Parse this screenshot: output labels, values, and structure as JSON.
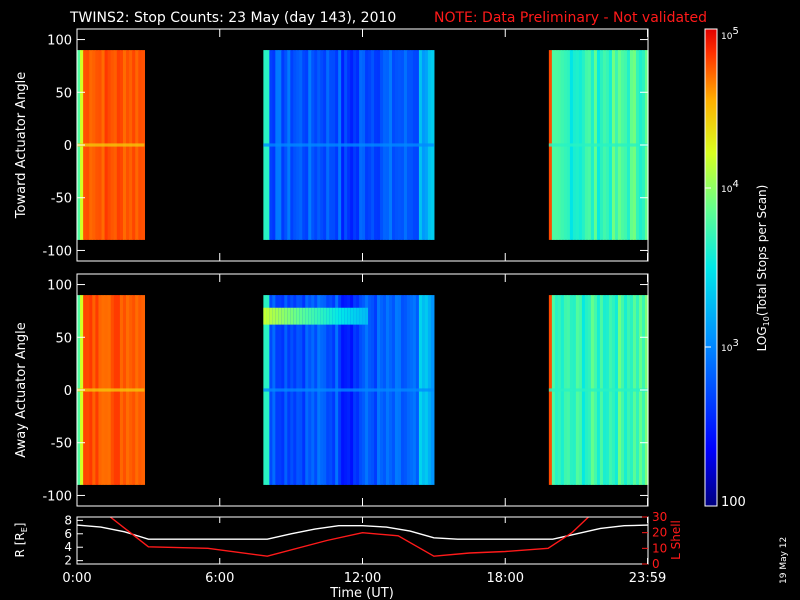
{
  "title": "TWINS2: Stop Counts: 23 May (day 143), 2010",
  "note": "NOTE: Data Preliminary - Not validated",
  "date_stamp": "19 May 12",
  "colors": {
    "note": "#ff1a1a",
    "r_line": "#ffffff",
    "lshell_line": "#ff1a1a",
    "background": "#000000"
  },
  "chart_data": [
    {
      "type": "heatmap",
      "ylabel": "Toward Actuator Angle",
      "ylim": [
        -110,
        110
      ],
      "yticks": [
        "100",
        "50",
        "0",
        "-50",
        "-100"
      ],
      "ytick_values": [
        100,
        50,
        0,
        -50,
        -100
      ],
      "angle_range": [
        -90,
        90
      ],
      "xlim_hours": [
        0,
        24
      ],
      "data_blocks": [
        {
          "start": "0:00",
          "end": "2:50",
          "level": "high"
        },
        {
          "start": "7:50",
          "end": "15:00",
          "level": "low"
        },
        {
          "start": "19:50",
          "end": "24:00",
          "level": "mid"
        }
      ]
    },
    {
      "type": "heatmap",
      "ylabel": "Away Actuator Angle",
      "ylim": [
        -110,
        110
      ],
      "yticks": [
        "100",
        "50",
        "0",
        "-50",
        "-100"
      ],
      "ytick_values": [
        100,
        50,
        0,
        -50,
        -100
      ],
      "angle_range": [
        -90,
        90
      ],
      "xlim_hours": [
        0,
        24
      ],
      "data_blocks": [
        {
          "start": "0:00",
          "end": "2:50",
          "level": "high"
        },
        {
          "start": "7:50",
          "end": "15:00",
          "level": "low"
        },
        {
          "start": "19:50",
          "end": "24:00",
          "level": "mid"
        }
      ]
    },
    {
      "type": "line",
      "ylabel": "R [R",
      "ylabel_sub": "E",
      "ylabel_close": "]",
      "ylim": [
        1.5,
        8.5
      ],
      "yticks": [
        "8",
        "6",
        "4",
        "2"
      ],
      "ytick_values": [
        8,
        6,
        4,
        2
      ],
      "y2label": "L Shell",
      "y2lim": [
        0,
        30
      ],
      "y2ticks": [
        "30",
        "20",
        "10",
        "0"
      ],
      "y2tick_values": [
        30,
        20,
        10,
        0
      ],
      "xlabel": "Time (UT)",
      "xticks": [
        "0:00",
        "6:00",
        "12:00",
        "18:00",
        "23:59"
      ],
      "xtick_hours": [
        0,
        6,
        12,
        18,
        23.98
      ],
      "series": [
        {
          "axis": "left",
          "x": [
            0,
            1,
            2,
            3,
            4,
            5,
            6,
            7,
            8,
            9,
            10,
            11,
            12,
            13,
            14,
            15,
            16,
            17,
            18,
            19,
            20,
            21,
            22,
            23,
            24
          ],
          "y": [
            7.3,
            7.0,
            6.3,
            5.2,
            5.2,
            5.2,
            5.2,
            5.2,
            5.2,
            6.0,
            6.7,
            7.2,
            7.2,
            7.0,
            6.4,
            5.4,
            5.2,
            5.2,
            5.2,
            5.2,
            5.2,
            6.0,
            6.8,
            7.2,
            7.3
          ]
        },
        {
          "axis": "right",
          "x": [
            1.4,
            3.0,
            5.5,
            8.0,
            10.5,
            12.0,
            13.5,
            15.0,
            16.5,
            18.0,
            19.8,
            20.8,
            21.5
          ],
          "y": [
            30,
            11,
            10,
            5,
            15,
            20,
            18,
            5,
            7,
            8,
            10,
            20,
            30
          ]
        }
      ]
    }
  ],
  "colorbar": {
    "label_prefix": "LOG",
    "label_sub": "10",
    "label_suffix": "(Total Stops per Scan)",
    "ticks": [
      {
        "base": "10",
        "exp": "5"
      },
      {
        "base": "10",
        "exp": "4"
      },
      {
        "base": "10",
        "exp": "3"
      },
      {
        "base": "100",
        "exp": ""
      }
    ],
    "tick_values": [
      100000,
      10000,
      1000,
      100
    ],
    "range": [
      100,
      100000
    ]
  }
}
